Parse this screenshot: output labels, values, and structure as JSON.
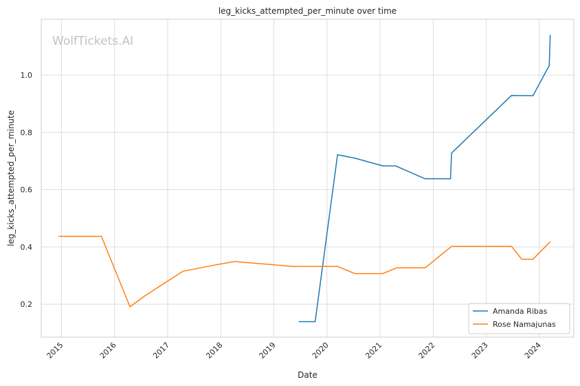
{
  "chart_data": {
    "type": "line",
    "title": "leg_kicks_attempted_per_minute over time",
    "xlabel": "Date",
    "ylabel": "leg_kicks_attempted_per_minute",
    "watermark": "WolfTickets.AI",
    "xlim": [
      "2014-08-15",
      "2024-08-25"
    ],
    "ylim": [
      0.085,
      1.195
    ],
    "x_ticks": [
      "2015",
      "2016",
      "2017",
      "2018",
      "2019",
      "2020",
      "2021",
      "2022",
      "2023",
      "2024"
    ],
    "y_ticks": [
      0.2,
      0.4,
      0.6,
      0.8,
      1.0
    ],
    "y_tick_labels": [
      "0.2",
      "0.4",
      "0.6",
      "0.8",
      "1.0"
    ],
    "grid": true,
    "legend_position": "bottom-right",
    "series": [
      {
        "name": "Amanda Ribas",
        "color": "#1f77b4",
        "points": [
          {
            "x": "2019-06-22",
            "y": 0.139
          },
          {
            "x": "2019-10-12",
            "y": 0.139
          },
          {
            "x": "2020-03-14",
            "y": 0.722
          },
          {
            "x": "2020-07-11",
            "y": 0.71
          },
          {
            "x": "2021-01-20",
            "y": 0.683
          },
          {
            "x": "2021-04-17",
            "y": 0.683
          },
          {
            "x": "2021-11-06",
            "y": 0.638
          },
          {
            "x": "2022-04-30",
            "y": 0.638
          },
          {
            "x": "2022-05-07",
            "y": 0.728
          },
          {
            "x": "2023-06-24",
            "y": 0.929
          },
          {
            "x": "2023-11-18",
            "y": 0.928
          },
          {
            "x": "2024-03-09",
            "y": 1.033
          },
          {
            "x": "2024-03-16",
            "y": 1.14
          }
        ]
      },
      {
        "name": "Rose Namajunas",
        "color": "#ff7f0e",
        "points": [
          {
            "x": "2014-12-12",
            "y": 0.437
          },
          {
            "x": "2015-10-03",
            "y": 0.437
          },
          {
            "x": "2016-04-16",
            "y": 0.191
          },
          {
            "x": "2016-07-30",
            "y": 0.23
          },
          {
            "x": "2017-04-15",
            "y": 0.315
          },
          {
            "x": "2017-12-02",
            "y": 0.338
          },
          {
            "x": "2018-04-07",
            "y": 0.349
          },
          {
            "x": "2019-05-11",
            "y": 0.332
          },
          {
            "x": "2020-03-14",
            "y": 0.332
          },
          {
            "x": "2020-07-11",
            "y": 0.307
          },
          {
            "x": "2021-01-20",
            "y": 0.307
          },
          {
            "x": "2021-04-24",
            "y": 0.327
          },
          {
            "x": "2021-11-06",
            "y": 0.327
          },
          {
            "x": "2022-05-07",
            "y": 0.402
          },
          {
            "x": "2023-06-24",
            "y": 0.402
          },
          {
            "x": "2023-09-02",
            "y": 0.357
          },
          {
            "x": "2023-11-18",
            "y": 0.357
          },
          {
            "x": "2024-03-16",
            "y": 0.418
          }
        ]
      }
    ]
  }
}
